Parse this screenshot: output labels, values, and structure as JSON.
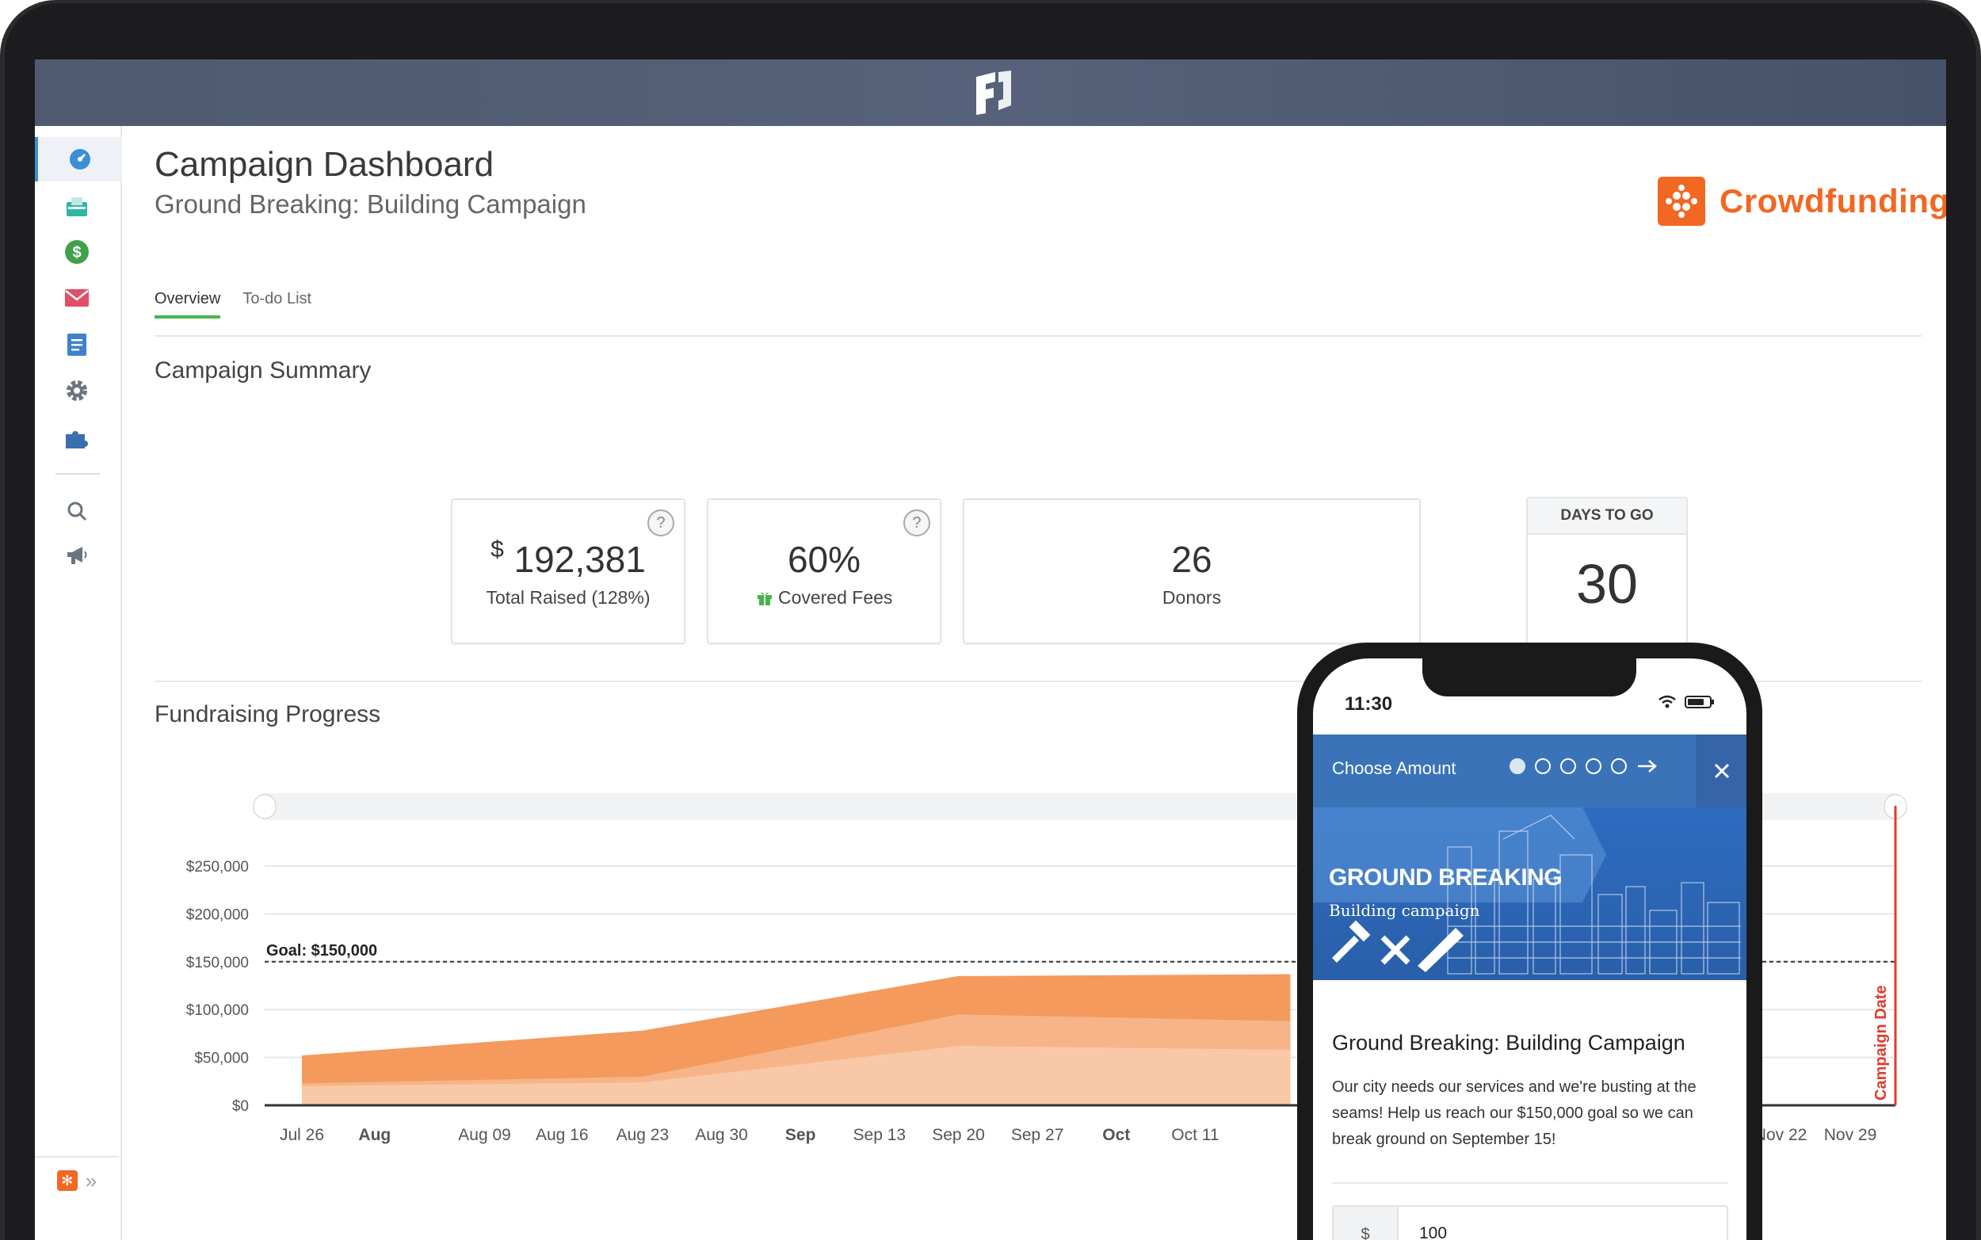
{
  "header": {
    "logo_icon": "fundraising-f-logo"
  },
  "sidebar": {
    "items": [
      {
        "name": "dashboard",
        "icon": "speedometer-icon",
        "color": "#3b8ed8",
        "active": true
      },
      {
        "name": "inbox",
        "icon": "inbox-icon",
        "color": "#2fb8a5"
      },
      {
        "name": "donations",
        "icon": "dollar-icon",
        "color": "#3fa24a"
      },
      {
        "name": "email",
        "icon": "envelope-icon",
        "color": "#e04f67"
      },
      {
        "name": "pages",
        "icon": "document-icon",
        "color": "#3f82c9"
      },
      {
        "name": "settings",
        "icon": "gear-icon",
        "color": "#6b7480"
      },
      {
        "name": "integrations",
        "icon": "puzzle-icon",
        "color": "#3a6fae"
      },
      {
        "name": "search",
        "icon": "search-icon",
        "color": "#6b7480"
      },
      {
        "name": "announcements",
        "icon": "megaphone-icon",
        "color": "#6b7480"
      }
    ]
  },
  "page": {
    "title": "Campaign Dashboard",
    "subtitle": "Ground Breaking: Building Campaign",
    "brand": "Crowdfunding",
    "tabs": [
      "Overview",
      "To-do List"
    ]
  },
  "summary": {
    "title": "Campaign Summary",
    "total_currency": "$",
    "total_value": "192,381",
    "total_label": "Total Raised (128%)",
    "fees_value": "60%",
    "fees_label": "Covered Fees",
    "donors_value": "26",
    "donors_label": "Donors",
    "days_label": "DAYS TO GO",
    "days_value": "30"
  },
  "progress": {
    "title": "Fundraising Progress"
  },
  "chart_data": {
    "type": "area",
    "ylabel": "",
    "ylim": [
      0,
      250000
    ],
    "yticks": [
      "$250,000",
      "$200,000",
      "$150,000",
      "$100,000",
      "$50,000",
      "$0"
    ],
    "goal_value": 150000,
    "goal_label": "Goal: $150,000",
    "x_labels": [
      "Jul 26",
      "Aug",
      "Aug 09",
      "Aug 16",
      "Aug 23",
      "Aug 30",
      "Sep",
      "Sep 13",
      "Sep 20",
      "Sep 27",
      "Oct",
      "Oct 11",
      "Nov 22",
      "Nov 29"
    ],
    "x_bold": [
      "Aug",
      "Sep",
      "Oct"
    ],
    "x": [
      "Jul 26",
      "Aug 23",
      "Sep 20",
      "Oct 11"
    ],
    "series": [
      {
        "values": [
          52000,
          78000,
          135000,
          137000
        ],
        "color": "#f39a5c"
      },
      {
        "values": [
          23000,
          30000,
          95000,
          88000
        ],
        "color": "#f6b488"
      },
      {
        "values": [
          20000,
          24000,
          62000,
          58000
        ],
        "color": "#f9c9a7"
      }
    ],
    "marker_label": "Campaign Date",
    "marker_color": "#e03c2d"
  },
  "phone": {
    "time": "11:30",
    "header_title": "Choose Amount",
    "steps": 5,
    "banner_title": "GROUND BREAKING",
    "banner_subtitle": "Building campaign",
    "campaign_name": "Ground Breaking: Building Campaign",
    "description": "Our city needs our services and we're busting at the seams! Help us reach our $150,000 goal so we can break ground on September 15!",
    "currency": "$",
    "amount": "100"
  }
}
